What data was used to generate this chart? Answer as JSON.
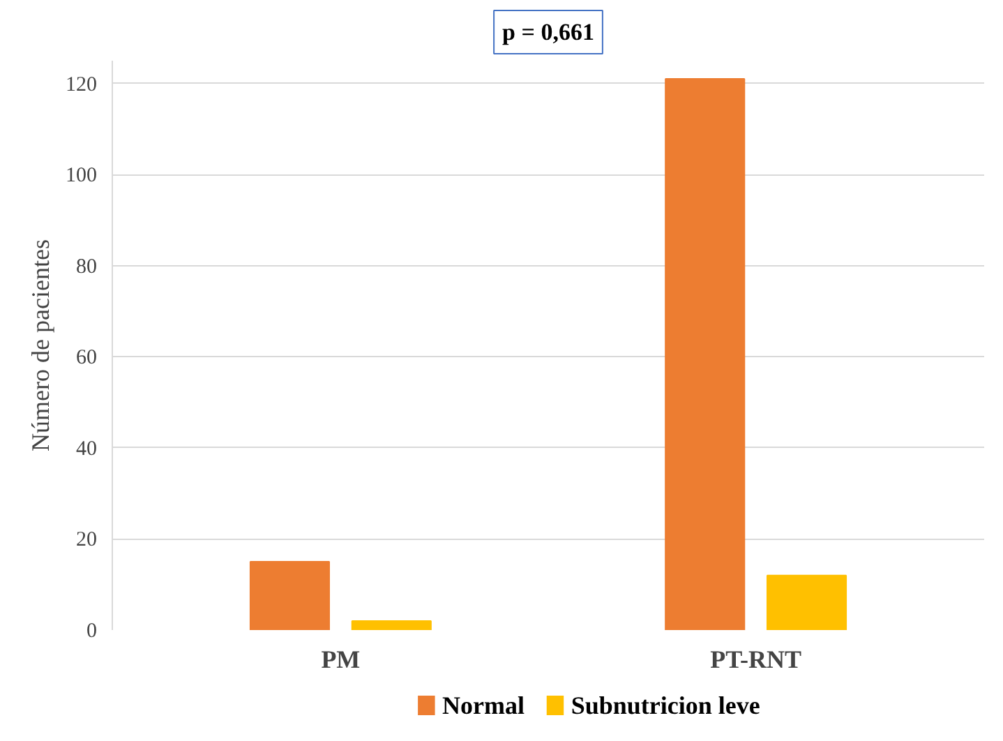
{
  "chart_data": {
    "type": "bar",
    "ylabel": "Número de pacientes",
    "categories": [
      "PM",
      "PT-RNT"
    ],
    "series": [
      {
        "name": "Normal",
        "color": "#ed7d31",
        "values": [
          15,
          121
        ]
      },
      {
        "name": "Subnutricion leve",
        "color": "#ffc000",
        "values": [
          2,
          12
        ]
      }
    ],
    "ylim": [
      0,
      125
    ],
    "yticks": [
      0,
      20,
      40,
      60,
      80,
      100,
      120
    ],
    "grid": "y",
    "legend": "bottom",
    "annotations": [
      "p = 0,661"
    ]
  }
}
